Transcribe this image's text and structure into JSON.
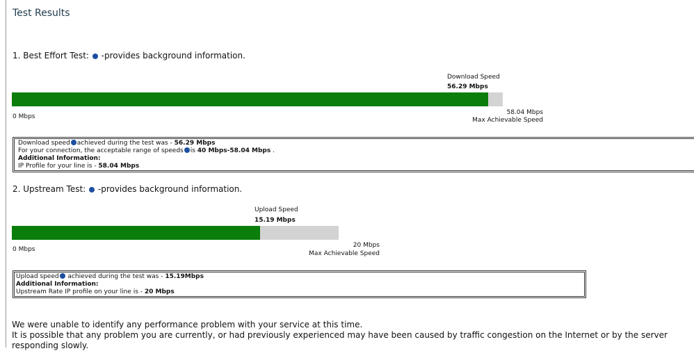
{
  "header": {
    "title": "Test Results"
  },
  "test1": {
    "heading": "1. Best Effort Test:",
    "heading_link": "-provides background information.",
    "speed_caption": "Download Speed",
    "speed": {
      "value": 56.29,
      "label": "56.29 Mbps"
    },
    "min_label": "0 Mbps",
    "max": {
      "value": 58.04,
      "label": "58.04 Mbps"
    },
    "max_caption": "Max Achievable Speed",
    "box": {
      "line1": "Download speed",
      "line1b": "achieved during the test was - ",
      "line2": "For your connection, the acceptable range of speeds",
      "line2b": "is ",
      "range": "40 Mbps-58.04 Mbps",
      "line2c": " .",
      "info": "Additional Information:",
      "line4": "IP Profile for your line is - "
    }
  },
  "test2": {
    "heading": "2. Upstream Test:",
    "heading_link": "-provides background information.",
    "speed_caption": "Upload Speed",
    "speed": {
      "value": 15.19,
      "label": "15.19 Mbps"
    },
    "min_label": "0 Mbps",
    "max": {
      "value": 20,
      "label": "20 Mbps"
    },
    "max_caption": "Max Achievable Speed",
    "box": {
      "line1": "Upload speed",
      "line1b": " achieved during the test was - ",
      "speed_text": "15.19Mbps",
      "info": "Additional Information:",
      "line3": "Upstream Rate IP profile on your line is - "
    }
  },
  "footer": {
    "line1": "We were unable to identify any performance problem with your service at this time.",
    "line2": "It is possible that any problem you are currently, or had previously experienced may have been caused by traffic congestion on the Internet or by the server",
    "line3": "responding slowly."
  }
}
